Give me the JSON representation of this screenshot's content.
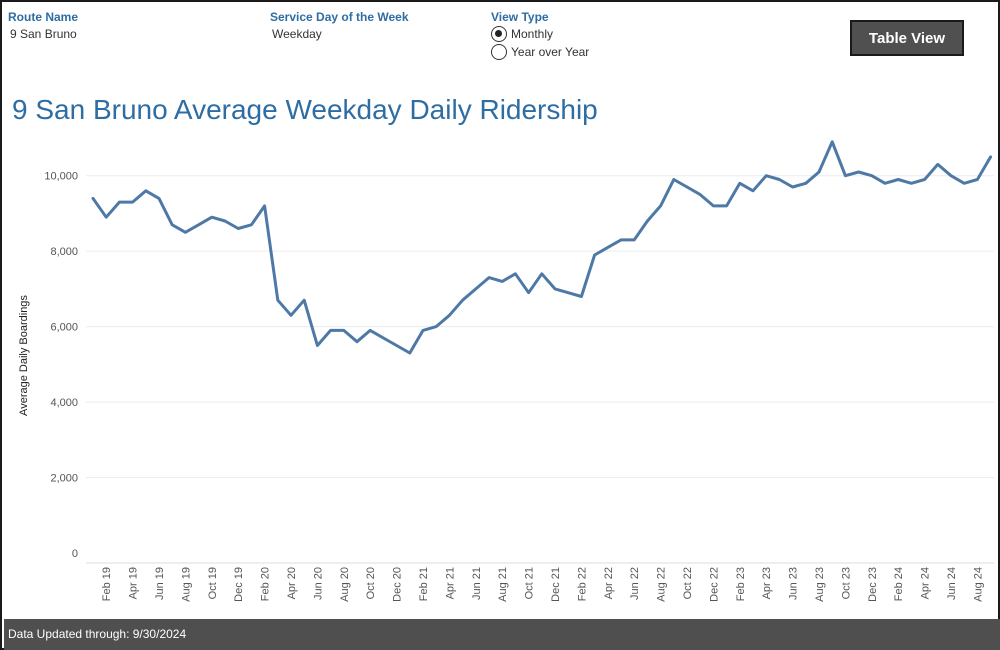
{
  "filters": {
    "route": {
      "label": "Route Name",
      "value": "9 San Bruno"
    },
    "service_day": {
      "label": "Service Day of the Week",
      "value": "Weekday"
    },
    "view_type": {
      "label": "View Type",
      "options": [
        "Monthly",
        "Year over Year"
      ],
      "selected": "Monthly"
    }
  },
  "table_view_button": "Table View",
  "footer": "Data Updated through: 9/30/2024",
  "chart_data": {
    "type": "line",
    "title": "9 San Bruno Average Weekday Daily Ridership",
    "xlabel": "",
    "ylabel": "Average Daily Boardings",
    "ylim": [
      0,
      11000
    ],
    "yticks": [
      0,
      2000,
      4000,
      6000,
      8000,
      10000
    ],
    "ytick_labels": [
      "0",
      "2,000",
      "4,000",
      "6,000",
      "8,000",
      "10,000"
    ],
    "grid": true,
    "legend": "none",
    "line_color": "#4e79a7",
    "x_start": "Jan 19",
    "x_tick_labels": [
      "Feb 19",
      "Apr 19",
      "Jun 19",
      "Aug 19",
      "Oct 19",
      "Dec 19",
      "Feb 20",
      "Apr 20",
      "Jun 20",
      "Aug 20",
      "Oct 20",
      "Dec 20",
      "Feb 21",
      "Apr 21",
      "Jun 21",
      "Aug 21",
      "Oct 21",
      "Dec 21",
      "Feb 22",
      "Apr 22",
      "Jun 22",
      "Aug 22",
      "Oct 22",
      "Dec 22",
      "Feb 23",
      "Apr 23",
      "Jun 23",
      "Aug 23",
      "Oct 23",
      "Dec 23",
      "Feb 24",
      "Apr 24",
      "Jun 24",
      "Aug 24"
    ],
    "values": [
      9400,
      8900,
      9300,
      9300,
      9600,
      9400,
      8700,
      8500,
      8700,
      8900,
      8800,
      8600,
      8700,
      9200,
      6700,
      6300,
      6700,
      5500,
      5900,
      5900,
      5600,
      5900,
      5700,
      5500,
      5300,
      5900,
      6000,
      6300,
      6700,
      7000,
      7300,
      7200,
      7400,
      6900,
      7400,
      7000,
      6900,
      6800,
      7900,
      8100,
      8300,
      8300,
      8800,
      9200,
      9900,
      9700,
      9500,
      9200,
      9200,
      9800,
      9600,
      10000,
      9900,
      9700,
      9800,
      10100,
      10900,
      10000,
      10100,
      10000,
      9800,
      9900,
      9800,
      9900,
      10300,
      10000,
      9800,
      9900,
      10500
    ]
  }
}
